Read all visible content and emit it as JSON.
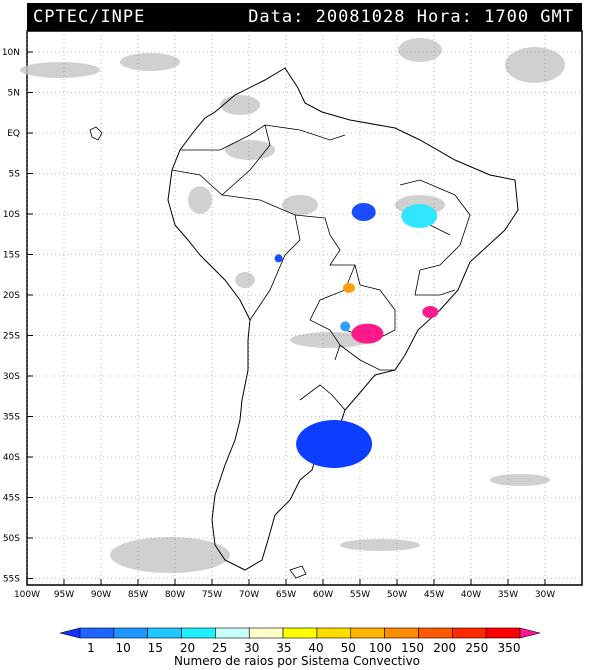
{
  "header": {
    "source": "CPTEC/INPE",
    "datetime": "Data: 20081028 Hora: 1700 GMT"
  },
  "map": {
    "lat_labels": [
      "10N",
      "5N",
      "EQ",
      "5S",
      "10S",
      "15S",
      "20S",
      "25S",
      "30S",
      "35S",
      "40S",
      "45S",
      "50S",
      "55S"
    ],
    "lon_labels": [
      "100W",
      "95W",
      "90W",
      "85W",
      "80W",
      "75W",
      "70W",
      "65W",
      "60W",
      "55W",
      "50W",
      "45W",
      "40W",
      "35W",
      "30W"
    ],
    "cloud_color": "#c8c8c8",
    "coastline_color": "#000000",
    "grid": "dotted"
  },
  "lightning_clusters": [
    {
      "id": "central-brazil-north",
      "color": "#1a4dff",
      "lon": -54.5,
      "lat": -10.0
    },
    {
      "id": "bahia-goias",
      "color": "#33e6ff",
      "lon": -47.0,
      "lat": -10.5
    },
    {
      "id": "mato-grosso-west",
      "color": "#1a4dff",
      "lon": -66.0,
      "lat": -15.8
    },
    {
      "id": "mato-grosso-south",
      "color": "#ffa000",
      "lon": -56.5,
      "lat": -19.5
    },
    {
      "id": "sao-paulo",
      "color": "#ff1a8c",
      "lon": -45.5,
      "lat": -22.5
    },
    {
      "id": "parana",
      "color": "#ff1a8c",
      "lon": -54.0,
      "lat": -25.2
    },
    {
      "id": "paraguay",
      "color": "#33a0ff",
      "lon": -57.0,
      "lat": -24.3
    },
    {
      "id": "argentina-south",
      "color": "#0d3dff",
      "lon": -58.5,
      "lat": -39.0
    }
  ],
  "colorbar": {
    "labels": [
      "1",
      "10",
      "15",
      "20",
      "25",
      "30",
      "35",
      "40",
      "50",
      "100",
      "150",
      "200",
      "250",
      "350"
    ],
    "colors": [
      "#1432ff",
      "#1e64ff",
      "#1e96ff",
      "#1ec8ff",
      "#1ef0ff",
      "#c8ffff",
      "#ffffc8",
      "#ffff00",
      "#ffdc00",
      "#ffb400",
      "#ff8c00",
      "#ff5a00",
      "#ff2800",
      "#ff0000",
      "#ff1493"
    ],
    "title": "Numero de raios por Sistema Convectivo"
  }
}
